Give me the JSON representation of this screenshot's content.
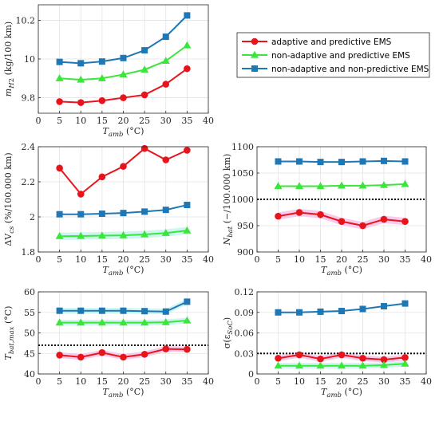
{
  "colors": {
    "adaptive": "#e8141b",
    "nonadaptive": "#39e639",
    "nonpredictive": "#1f77b4",
    "bar_shade_pink": "#f6b8e6",
    "bar_shade_cyan": "#bff1ef",
    "ref_line": "#000000"
  },
  "legend": {
    "placement": "top-right",
    "entries": [
      {
        "label": "adaptive and predictive EMS",
        "color": "#e8141b",
        "marker": "circle"
      },
      {
        "label": "non-adaptive and predictive EMS",
        "color": "#39e639",
        "marker": "triangle"
      },
      {
        "label": "non-adaptive and non-predictive EMS",
        "color": "#1f77b4",
        "marker": "square"
      }
    ]
  },
  "chart_data": [
    {
      "type": "line",
      "xlabel": "T_amb (°C)",
      "ylabel": "m_H2 (kg/100 km)",
      "xlim": [
        0,
        40
      ],
      "ylim": [
        9.72,
        10.28
      ],
      "xticks": [
        0,
        5,
        10,
        15,
        20,
        25,
        30,
        35,
        40
      ],
      "yticks": [
        9.8,
        10,
        10.2
      ],
      "grid": true,
      "x": [
        5,
        10,
        15,
        20,
        25,
        30,
        35
      ],
      "series": [
        {
          "name": "adaptive and predictive EMS",
          "values": [
            9.78,
            9.775,
            9.785,
            9.8,
            9.815,
            9.87,
            9.95
          ]
        },
        {
          "name": "non-adaptive and predictive EMS",
          "values": [
            9.9,
            9.893,
            9.9,
            9.92,
            9.945,
            9.99,
            10.07
          ]
        },
        {
          "name": "non-adaptive and non-predictive EMS",
          "values": [
            9.985,
            9.978,
            9.987,
            10.005,
            10.045,
            10.115,
            10.225
          ]
        }
      ]
    },
    {
      "type": "line",
      "xlabel": "T_amb (°C)",
      "ylabel": "ΔV_cs (%/100.000 km)",
      "xlim": [
        0,
        40
      ],
      "ylim": [
        1.8,
        2.4
      ],
      "xticks": [
        0,
        5,
        10,
        15,
        20,
        25,
        30,
        35,
        40
      ],
      "yticks": [
        1.8,
        2,
        2.2,
        2.4
      ],
      "grid": true,
      "x": [
        5,
        10,
        15,
        20,
        25,
        30,
        35
      ],
      "series": [
        {
          "name": "adaptive and predictive EMS",
          "values": [
            2.278,
            2.13,
            2.228,
            2.288,
            2.39,
            2.325,
            2.38
          ]
        },
        {
          "name": "non-adaptive and predictive EMS",
          "values": [
            1.89,
            1.891,
            1.893,
            1.895,
            1.9,
            1.908,
            1.922
          ]
        },
        {
          "name": "non-adaptive and non-predictive EMS",
          "values": [
            2.015,
            2.015,
            2.018,
            2.022,
            2.03,
            2.04,
            2.068
          ]
        }
      ]
    },
    {
      "type": "line",
      "xlabel": "T_amb (°C)",
      "ylabel": "N_bat (−/100.000 km)",
      "xlim": [
        0,
        40
      ],
      "ylim": [
        900,
        1100
      ],
      "xticks": [
        0,
        5,
        10,
        15,
        20,
        25,
        30,
        35,
        40
      ],
      "yticks": [
        900,
        950,
        1000,
        1050,
        1100
      ],
      "grid": true,
      "reference_line": 1000,
      "x": [
        5,
        10,
        15,
        20,
        25,
        30,
        35
      ],
      "series": [
        {
          "name": "adaptive and predictive EMS",
          "values": [
            968,
            975,
            971,
            958,
            950,
            962,
            958
          ]
        },
        {
          "name": "non-adaptive and predictive EMS",
          "values": [
            1025,
            1025,
            1025,
            1026,
            1026,
            1027,
            1029
          ]
        },
        {
          "name": "non-adaptive and non-predictive EMS",
          "values": [
            1072,
            1072,
            1071,
            1071,
            1072,
            1073,
            1072
          ]
        }
      ]
    },
    {
      "type": "line",
      "xlabel": "T_amb (°C)",
      "ylabel": "T_bat,max (°C)",
      "xlim": [
        0,
        40
      ],
      "ylim": [
        40,
        60
      ],
      "xticks": [
        0,
        5,
        10,
        15,
        20,
        25,
        30,
        35,
        40
      ],
      "yticks": [
        40,
        45,
        50,
        55,
        60
      ],
      "grid": true,
      "reference_line": 47,
      "x": [
        5,
        10,
        15,
        20,
        25,
        30,
        35
      ],
      "series": [
        {
          "name": "adaptive and predictive EMS",
          "values": [
            44.6,
            44.1,
            45.2,
            44.1,
            44.8,
            46.1,
            46.0
          ]
        },
        {
          "name": "non-adaptive and predictive EMS",
          "values": [
            52.5,
            52.5,
            52.5,
            52.5,
            52.5,
            52.6,
            53.0
          ]
        },
        {
          "name": "non-adaptive and non-predictive EMS",
          "values": [
            55.4,
            55.4,
            55.4,
            55.4,
            55.3,
            55.2,
            57.6
          ]
        }
      ]
    },
    {
      "type": "line",
      "xlabel": "T_amb (°C)",
      "ylabel": "σ(ε_SoC)",
      "xlim": [
        0,
        40
      ],
      "ylim": [
        0,
        0.12
      ],
      "xticks": [
        0,
        5,
        10,
        15,
        20,
        25,
        30,
        35,
        40
      ],
      "yticks": [
        0,
        0.03,
        0.06,
        0.09,
        0.12
      ],
      "grid": true,
      "reference_line": 0.03,
      "x": [
        5,
        10,
        15,
        20,
        25,
        30,
        35
      ],
      "series": [
        {
          "name": "adaptive and predictive EMS",
          "values": [
            0.023,
            0.028,
            0.022,
            0.028,
            0.023,
            0.021,
            0.024
          ]
        },
        {
          "name": "non-adaptive and predictive EMS",
          "values": [
            0.012,
            0.012,
            0.012,
            0.012,
            0.012,
            0.013,
            0.015
          ]
        },
        {
          "name": "non-adaptive and non-predictive EMS",
          "values": [
            0.09,
            0.09,
            0.091,
            0.092,
            0.095,
            0.099,
            0.103
          ]
        }
      ]
    }
  ]
}
